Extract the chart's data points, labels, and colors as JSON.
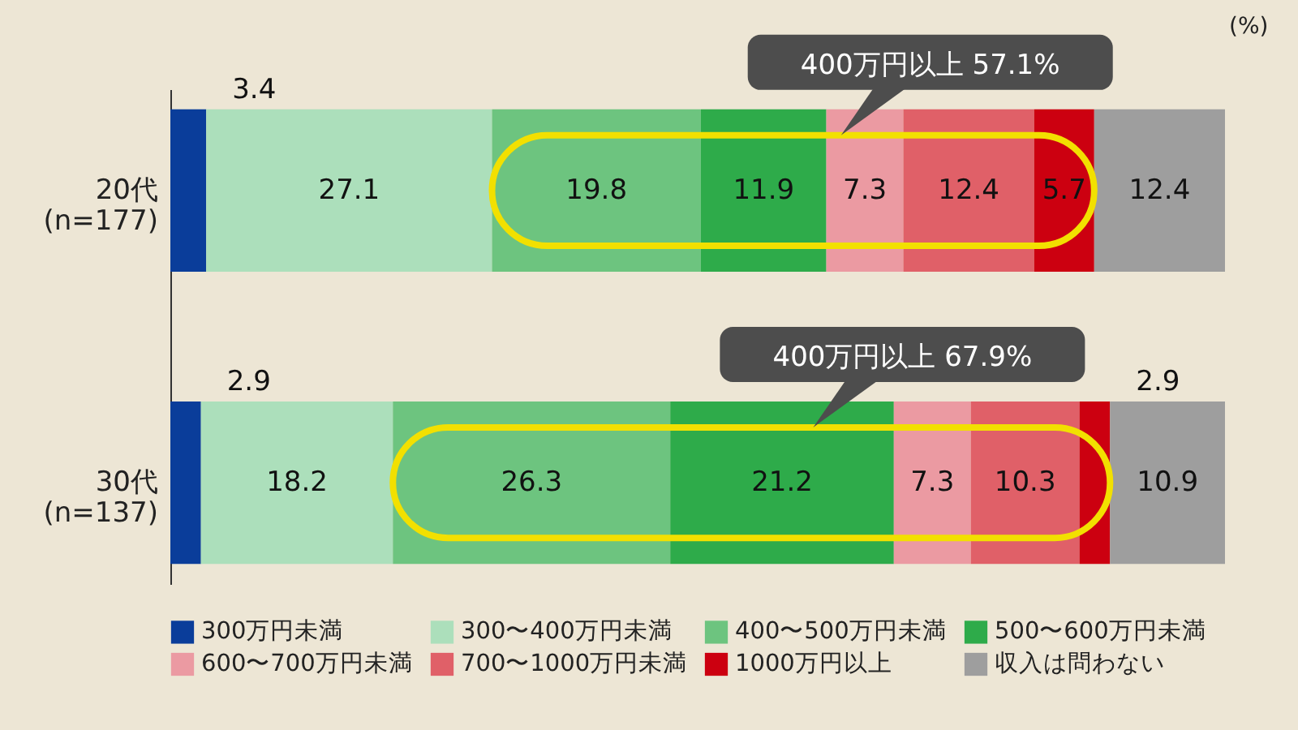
{
  "chart_data": {
    "type": "bar",
    "orientation": "horizontal",
    "stacked": true,
    "xlabel": "(%)",
    "tick_labels": "y",
    "legend": "bottom",
    "data_labels": true,
    "categories": [
      "20代\n(n=177)",
      "30代\n(n=137)"
    ],
    "series": [
      {
        "name": "300万円未満",
        "color": "#0a3d9a",
        "values": [
          3.4,
          2.9
        ]
      },
      {
        "name": "300〜400万円未満",
        "color": "#acdfbb",
        "values": [
          27.1,
          18.2
        ]
      },
      {
        "name": "400〜500万円未満",
        "color": "#6dc47f",
        "values": [
          19.8,
          26.3
        ]
      },
      {
        "name": "500〜600万円未満",
        "color": "#2eab4a",
        "values": [
          11.9,
          21.2
        ]
      },
      {
        "name": "600〜700万円未満",
        "color": "#eb9aa2",
        "values": [
          7.3,
          7.3
        ]
      },
      {
        "name": "700〜1000万円未満",
        "color": "#e06068",
        "values": [
          12.4,
          10.3
        ]
      },
      {
        "name": "1000万円以上",
        "color": "#cc0010",
        "values": [
          5.7,
          2.9
        ]
      },
      {
        "name": "収入は問わない",
        "color": "#9e9e9e",
        "values": [
          12.4,
          10.9
        ]
      }
    ],
    "annotations": [
      "400万円以上 57.1%",
      "400万円以上 67.9%"
    ]
  }
}
